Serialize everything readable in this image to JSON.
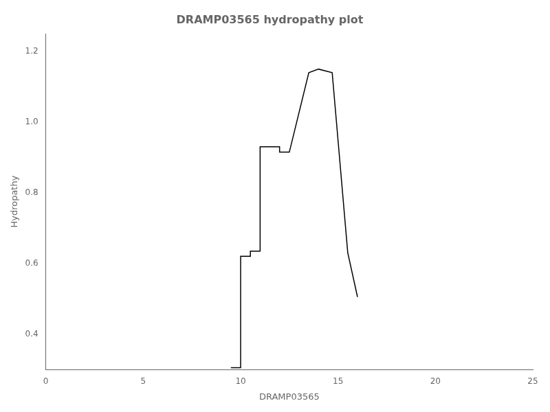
{
  "chart_data": {
    "type": "line",
    "title": "DRAMP03565 hydropathy plot",
    "xlabel": "DRAMP03565",
    "ylabel": "Hydropathy",
    "x": [
      9.5,
      9.85,
      10.0,
      10.0,
      10.5,
      10.5,
      11.0,
      11.0,
      12.0,
      12.0,
      12.5,
      13.5,
      14.0,
      14.7,
      15.5,
      16.0
    ],
    "values": [
      0.305,
      0.305,
      0.305,
      0.62,
      0.62,
      0.635,
      0.635,
      0.93,
      0.93,
      0.915,
      0.915,
      1.14,
      1.15,
      1.14,
      0.63,
      0.505
    ],
    "color": "#000000",
    "xlim": [
      0,
      25
    ],
    "ylim": [
      0.3,
      1.25
    ],
    "xticks": [
      0,
      5,
      10,
      15,
      20,
      25
    ],
    "yticks": [
      0.4,
      0.6,
      0.8,
      {
        "value": 1.0,
        "label": "1.0"
      },
      1.2
    ],
    "grid": false
  }
}
